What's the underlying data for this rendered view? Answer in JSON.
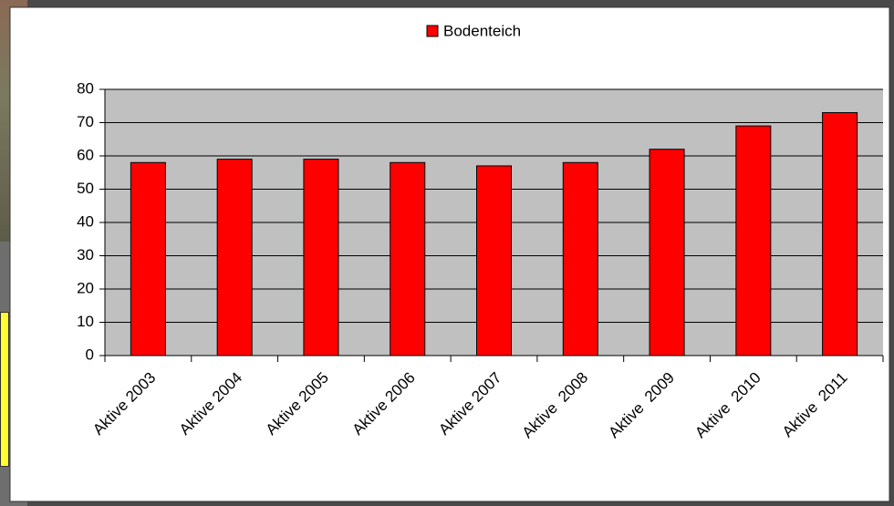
{
  "chart_data": {
    "type": "bar",
    "categories": [
      "Aktive 2003",
      "Aktive 2004",
      "Aktive 2005",
      "Aktive 2006",
      "Aktive 2007",
      "Aktive  2008",
      "Aktive  2009",
      "Aktive  2010",
      "Aktive  2011"
    ],
    "series": [
      {
        "name": "Bodenteich",
        "color": "#ff0000",
        "values": [
          58,
          59,
          59,
          58,
          57,
          58,
          62,
          69,
          73
        ]
      }
    ],
    "ylim": [
      0,
      80
    ],
    "yticks": [
      0,
      10,
      20,
      30,
      40,
      50,
      60,
      70,
      80
    ],
    "grid": true,
    "legend": "top"
  }
}
